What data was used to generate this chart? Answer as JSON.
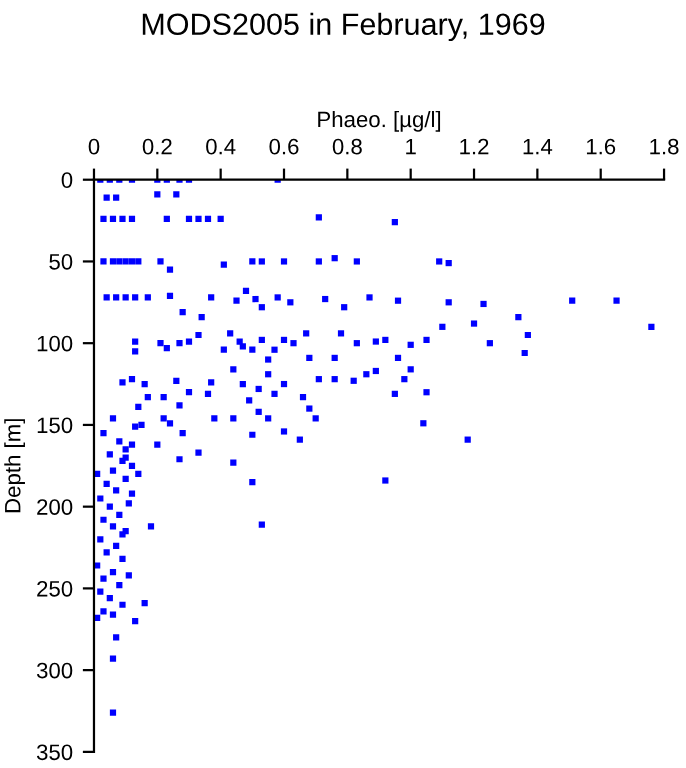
{
  "chart_data": {
    "type": "scatter",
    "title": "MODS2005 in February, 1969",
    "xlabel": "Phaeo. [µg/l]",
    "ylabel": "Depth [m]",
    "marker": "square",
    "grid": false,
    "legend": false,
    "xlim": [
      0,
      1.8
    ],
    "xticks": [
      0,
      0.2,
      0.4,
      0.6,
      0.8,
      1,
      1.2,
      1.4,
      1.6,
      1.8
    ],
    "ylim": [
      350,
      0
    ],
    "yticks": [
      0,
      50,
      100,
      150,
      200,
      250,
      300,
      350
    ],
    "series": [
      {
        "color": "#0000ff",
        "x": [
          0.02,
          0.05,
          0.08,
          0.12,
          0.2,
          0.23,
          0.27,
          0.3,
          0.58,
          0.04,
          0.07,
          0.2,
          0.26,
          0.03,
          0.06,
          0.09,
          0.12,
          0.23,
          0.3,
          0.33,
          0.36,
          0.4,
          0.71,
          0.95,
          0.03,
          0.06,
          0.08,
          0.1,
          0.12,
          0.14,
          0.21,
          0.24,
          0.41,
          0.5,
          0.53,
          0.6,
          0.71,
          0.76,
          0.83,
          1.09,
          1.12,
          0.04,
          0.07,
          0.1,
          0.13,
          0.17,
          0.24,
          0.28,
          0.34,
          0.37,
          0.45,
          0.48,
          0.51,
          0.53,
          0.58,
          0.62,
          0.73,
          0.79,
          0.87,
          0.96,
          1.12,
          1.23,
          1.34,
          1.51,
          1.65,
          1.1,
          1.2,
          1.76,
          1.37,
          0.13,
          0.13,
          0.21,
          0.23,
          0.27,
          0.3,
          0.33,
          0.41,
          0.43,
          0.46,
          0.47,
          0.5,
          0.53,
          0.55,
          0.57,
          0.6,
          0.63,
          0.67,
          0.68,
          0.76,
          0.78,
          0.83,
          0.89,
          0.92,
          0.96,
          1.0,
          1.05,
          1.25,
          1.36,
          0.09,
          0.12,
          0.16,
          0.17,
          0.22,
          0.26,
          0.3,
          0.36,
          0.37,
          0.44,
          0.47,
          0.49,
          0.52,
          0.55,
          0.57,
          0.6,
          0.66,
          0.71,
          0.76,
          0.82,
          0.86,
          0.89,
          0.95,
          0.98,
          1.0,
          1.05,
          0.14,
          0.13,
          0.06,
          0.27,
          0.22,
          0.24,
          0.28,
          0.38,
          0.44,
          0.5,
          0.52,
          0.55,
          0.6,
          0.65,
          0.68,
          0.7,
          1.04,
          1.18,
          0.92,
          0.5,
          0.44,
          0.2,
          0.33,
          0.27,
          0.53,
          0.18,
          0.09,
          0.11,
          0.16,
          0.13,
          0.07,
          0.06,
          0.06,
          0.03,
          0.08,
          0.1,
          0.05,
          0.09,
          0.12,
          0.06,
          0.01,
          0.1,
          0.04,
          0.07,
          0.02,
          0.11,
          0.05,
          0.08,
          0.03,
          0.06,
          0.1,
          0.02,
          0.07,
          0.04,
          0.09,
          0.01,
          0.06,
          0.03,
          0.08,
          0.02,
          0.05,
          0.09,
          0.03,
          0.06,
          0.01,
          0.1,
          0.14,
          0.12,
          0.15,
          0.12
        ],
        "values": [
          0,
          0,
          0,
          0,
          0,
          0,
          0,
          0,
          0,
          11,
          11,
          9,
          9,
          24,
          24,
          24,
          24,
          24,
          24,
          24,
          24,
          24,
          23,
          26,
          50,
          50,
          50,
          50,
          50,
          50,
          50,
          55,
          52,
          50,
          50,
          50,
          50,
          48,
          50,
          50,
          51,
          72,
          72,
          72,
          72,
          72,
          71,
          81,
          84,
          72,
          74,
          68,
          73,
          78,
          72,
          75,
          73,
          78,
          72,
          74,
          75,
          76,
          84,
          74,
          74,
          90,
          88,
          90,
          95,
          99,
          105,
          100,
          103,
          100,
          99,
          95,
          104,
          94,
          99,
          102,
          104,
          98,
          110,
          104,
          98,
          100,
          94,
          109,
          109,
          94,
          100,
          99,
          98,
          109,
          101,
          98,
          100,
          106,
          124,
          122,
          125,
          133,
          133,
          123,
          130,
          131,
          124,
          116,
          125,
          135,
          128,
          119,
          131,
          125,
          133,
          122,
          122,
          123,
          119,
          117,
          131,
          122,
          116,
          130,
          139,
          151,
          146,
          138,
          146,
          149,
          155,
          146,
          146,
          156,
          142,
          146,
          154,
          159,
          140,
          146,
          149,
          159,
          184,
          185,
          173,
          162,
          167,
          171,
          211,
          212,
          217,
          242,
          259,
          270,
          280,
          293,
          326,
          155,
          160,
          165,
          168,
          172,
          175,
          178,
          180,
          183,
          186,
          190,
          195,
          198,
          200,
          205,
          208,
          212,
          215,
          220,
          224,
          228,
          232,
          236,
          240,
          244,
          248,
          252,
          256,
          260,
          264,
          266,
          268,
          170,
          180,
          192,
          150,
          162
        ]
      }
    ]
  }
}
